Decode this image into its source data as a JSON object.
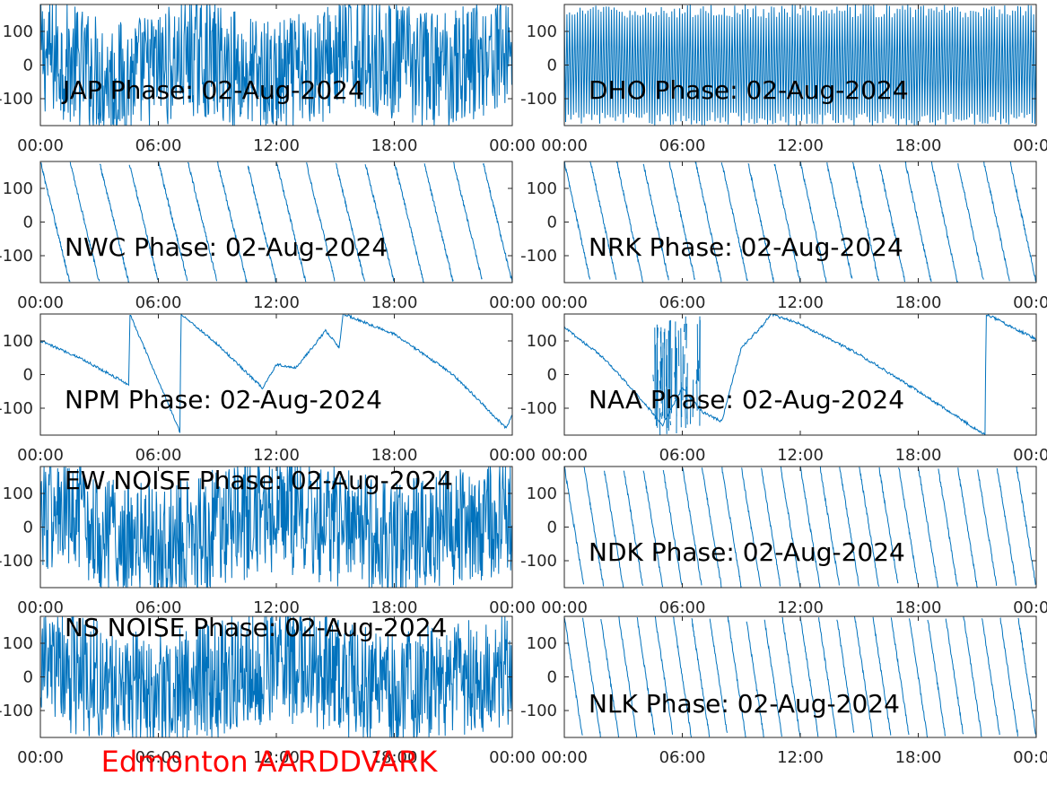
{
  "figure": {
    "footer": "Edmonton AARDDVARK",
    "footer_color": "#ff0000",
    "line_color": "#0072bd"
  },
  "chart_data": [
    {
      "type": "line",
      "title": "JAP Phase: 02-Aug-2024",
      "xticks": [
        "00:00",
        "06:00",
        "12:00",
        "18:00",
        "00:00"
      ],
      "yticks": [
        "100",
        "0",
        "-100"
      ],
      "ylim": [
        -180,
        180
      ],
      "xlim_hours": [
        0,
        24
      ],
      "pattern": "noise",
      "cycles": 60,
      "x": [
        0,
        4,
        8,
        12,
        16,
        20,
        24
      ],
      "y": [
        120,
        -150,
        90,
        -170,
        150,
        -60,
        170
      ]
    },
    {
      "type": "line",
      "title": "DHO Phase: 02-Aug-2024",
      "xticks": [
        "00:00",
        "06:00",
        "12:00",
        "18:00",
        "00:00"
      ],
      "yticks": [
        "100",
        "0",
        "-100"
      ],
      "ylim": [
        -180,
        180
      ],
      "xlim_hours": [
        0,
        24
      ],
      "pattern": "dense_wrap",
      "cycles": 90,
      "x": [
        0,
        6,
        12,
        18,
        24
      ],
      "y": [
        180,
        -180,
        180,
        -180,
        180
      ]
    },
    {
      "type": "line",
      "title": "NWC Phase: 02-Aug-2024",
      "xticks": [
        "00:00",
        "06:00",
        "12:00",
        "18:00",
        "00:00"
      ],
      "yticks": [
        "100",
        "0",
        "-100"
      ],
      "ylim": [
        -180,
        180
      ],
      "xlim_hours": [
        0,
        24
      ],
      "pattern": "wrap_down",
      "cycles": 16,
      "x": [
        0.2,
        1.5,
        3.2,
        3.4,
        4.0,
        5.0,
        7.0,
        8.6,
        10.5,
        13.6,
        17.0,
        21.0,
        23.8
      ],
      "y": [
        175,
        60,
        -170,
        180,
        120,
        150,
        -170,
        175,
        170,
        175,
        120,
        -20,
        -170
      ]
    },
    {
      "type": "line",
      "title": "NRK Phase: 02-Aug-2024",
      "xticks": [
        "00:00",
        "06:00",
        "12:00",
        "18:00",
        "00:00"
      ],
      "yticks": [
        "100",
        "0",
        "-100"
      ],
      "ylim": [
        -180,
        180
      ],
      "xlim_hours": [
        0,
        24
      ],
      "pattern": "wrap_down",
      "cycles": 18,
      "x": [
        0,
        1,
        2,
        4,
        6,
        8,
        10,
        12,
        14,
        16,
        18,
        20,
        22,
        24
      ],
      "y": [
        40,
        -180,
        180,
        160,
        150,
        140,
        175,
        175,
        175,
        175,
        175,
        175,
        175,
        120
      ]
    },
    {
      "type": "line",
      "title": "NPM Phase: 02-Aug-2024",
      "xticks": [
        "00:00",
        "06:00",
        "12:00",
        "18:00",
        "00:00"
      ],
      "yticks": [
        "100",
        "0",
        "-100"
      ],
      "ylim": [
        -180,
        180
      ],
      "xlim_hours": [
        0,
        24
      ],
      "pattern": "npm",
      "x": [
        0,
        2,
        4.5,
        4.55,
        7.1,
        7.15,
        9,
        11.3,
        12,
        13,
        14.5,
        15.2,
        15.4,
        18,
        21,
        23.7,
        24
      ],
      "y": [
        100,
        50,
        -30,
        180,
        -170,
        180,
        90,
        -40,
        30,
        20,
        130,
        80,
        180,
        120,
        0,
        -160,
        -120
      ]
    },
    {
      "type": "line",
      "title": "NAA Phase: 02-Aug-2024",
      "xticks": [
        "00:00",
        "06:00",
        "12:00",
        "18:00",
        "00:00"
      ],
      "yticks": [
        "100",
        "0",
        "-100"
      ],
      "ylim": [
        -180,
        180
      ],
      "xlim_hours": [
        0,
        24
      ],
      "pattern": "naa",
      "x": [
        0,
        2,
        4,
        5,
        6,
        7,
        8,
        9,
        10,
        10.5,
        12,
        15,
        18,
        21.4,
        21.45,
        24
      ],
      "y": [
        140,
        50,
        -80,
        -150,
        -40,
        -110,
        -140,
        80,
        140,
        180,
        150,
        60,
        -50,
        -180,
        180,
        105
      ]
    },
    {
      "type": "line",
      "title": "EW NOISE Phase: 02-Aug-2024",
      "xticks": [
        "00:00",
        "06:00",
        "12:00",
        "18:00",
        "00:00"
      ],
      "yticks": [
        "100",
        "0",
        "-100"
      ],
      "ylim": [
        -180,
        180
      ],
      "xlim_hours": [
        0,
        24
      ],
      "pattern": "noise",
      "cycles": 80,
      "x": [
        0,
        6,
        12,
        18,
        24
      ],
      "y": [
        150,
        -170,
        160,
        -150,
        140
      ]
    },
    {
      "type": "line",
      "title": "NDK Phase: 02-Aug-2024",
      "xticks": [
        "00:00",
        "06:00",
        "12:00",
        "18:00",
        "00:00"
      ],
      "yticks": [
        "100",
        "0",
        "-100"
      ],
      "ylim": [
        -180,
        180
      ],
      "xlim_hours": [
        0,
        24
      ],
      "pattern": "wrap_down",
      "cycles": 24,
      "x": [
        0,
        6,
        10.5,
        12,
        18,
        24
      ],
      "y": [
        180,
        -180,
        60,
        180,
        -180,
        180
      ]
    },
    {
      "type": "line",
      "title": "NS NOISE Phase: 02-Aug-2024",
      "xticks": [
        "00:00",
        "06:00",
        "12:00",
        "18:00",
        "00:00"
      ],
      "yticks": [
        "100",
        "0",
        "-100"
      ],
      "ylim": [
        -180,
        180
      ],
      "xlim_hours": [
        0,
        24
      ],
      "pattern": "noise",
      "cycles": 70,
      "x": [
        0,
        6,
        12,
        18,
        24
      ],
      "y": [
        100,
        -170,
        150,
        -160,
        120
      ]
    },
    {
      "type": "line",
      "title": "NLK Phase: 02-Aug-2024",
      "xticks": [
        "00:00",
        "06:00",
        "12:00",
        "18:00",
        "00:00"
      ],
      "yticks": [
        "100",
        "0",
        "-100"
      ],
      "ylim": [
        -180,
        180
      ],
      "xlim_hours": [
        0,
        24
      ],
      "pattern": "wrap_down",
      "cycles": 26,
      "x": [
        0,
        6,
        12,
        18,
        24
      ],
      "y": [
        150,
        -180,
        180,
        -180,
        180
      ]
    }
  ]
}
